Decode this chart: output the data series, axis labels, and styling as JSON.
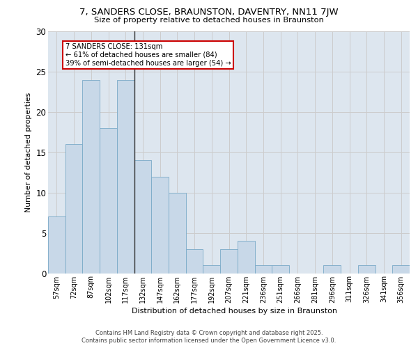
{
  "title_line1": "7, SANDERS CLOSE, BRAUNSTON, DAVENTRY, NN11 7JW",
  "title_line2": "Size of property relative to detached houses in Braunston",
  "xlabel": "Distribution of detached houses by size in Braunston",
  "ylabel": "Number of detached properties",
  "categories": [
    "57sqm",
    "72sqm",
    "87sqm",
    "102sqm",
    "117sqm",
    "132sqm",
    "147sqm",
    "162sqm",
    "177sqm",
    "192sqm",
    "207sqm",
    "221sqm",
    "236sqm",
    "251sqm",
    "266sqm",
    "281sqm",
    "296sqm",
    "311sqm",
    "326sqm",
    "341sqm",
    "356sqm"
  ],
  "values": [
    7,
    16,
    24,
    18,
    24,
    14,
    12,
    10,
    3,
    1,
    3,
    4,
    1,
    1,
    0,
    0,
    1,
    0,
    1,
    0,
    1
  ],
  "bar_color": "#c8d8e8",
  "bar_edge_color": "#7aaac8",
  "vline_x_index": 5,
  "vline_color": "#333333",
  "annotation_text": "7 SANDERS CLOSE: 131sqm\n← 61% of detached houses are smaller (84)\n39% of semi-detached houses are larger (54) →",
  "annotation_box_color": "#ffffff",
  "annotation_box_edge": "#cc0000",
  "ylim": [
    0,
    30
  ],
  "yticks": [
    0,
    5,
    10,
    15,
    20,
    25,
    30
  ],
  "grid_color": "#cccccc",
  "bg_color": "#dde6ef",
  "footer_line1": "Contains HM Land Registry data © Crown copyright and database right 2025.",
  "footer_line2": "Contains public sector information licensed under the Open Government Licence v3.0."
}
